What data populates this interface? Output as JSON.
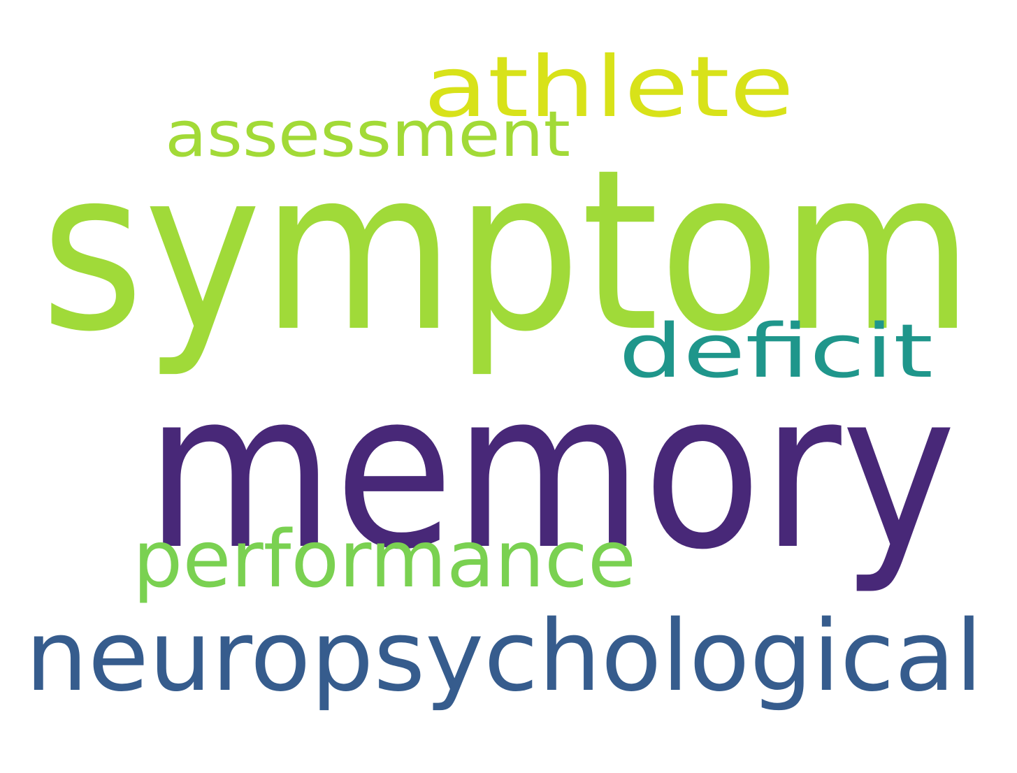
{
  "words": [
    {
      "id": "athlete",
      "text": "athlete",
      "color": "#d8e219"
    },
    {
      "id": "assessment",
      "text": "assessment",
      "color": "#a2da37"
    },
    {
      "id": "symptom",
      "text": "symptom",
      "color": "#a0da39"
    },
    {
      "id": "deficit",
      "text": "deficit",
      "color": "#1f968b"
    },
    {
      "id": "memory",
      "text": "memory",
      "color": "#482878"
    },
    {
      "id": "performance",
      "text": "performance",
      "color": "#7ad151"
    },
    {
      "id": "neuropsychological",
      "text": "neuropsychological",
      "color": "#365c8d"
    }
  ]
}
